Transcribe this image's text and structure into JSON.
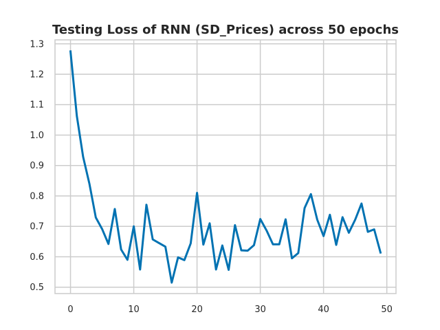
{
  "chart_data": {
    "type": "line",
    "title": "Testing Loss of RNN (SD_Prices) across 50 epochs",
    "xlabel": "",
    "ylabel": "",
    "xlim": [
      -2.45,
      51.45
    ],
    "ylim": [
      0.479,
      1.313
    ],
    "grid": true,
    "legend": "none",
    "x_ticks": [
      0,
      10,
      20,
      30,
      40,
      50
    ],
    "y_ticks": [
      0.5,
      0.6,
      0.7,
      0.8,
      0.9,
      1.0,
      1.1,
      1.2,
      1.3
    ],
    "x_tick_labels": [
      "0",
      "10",
      "20",
      "30",
      "40",
      "50"
    ],
    "y_tick_labels": [
      "0.5",
      "0.6",
      "0.7",
      "0.8",
      "0.9",
      "1.0",
      "1.1",
      "1.2",
      "1.3"
    ],
    "series": [
      {
        "color": "#0072b2",
        "x": [
          0,
          1,
          2,
          3,
          4,
          5,
          6,
          7,
          8,
          9,
          10,
          11,
          12,
          13,
          14,
          15,
          16,
          17,
          18,
          19,
          20,
          21,
          22,
          23,
          24,
          25,
          26,
          27,
          28,
          29,
          30,
          31,
          32,
          33,
          34,
          35,
          36,
          37,
          38,
          39,
          40,
          41,
          42,
          43,
          44,
          45,
          46,
          47,
          48,
          49
        ],
        "values": [
          1.275,
          1.063,
          0.928,
          0.839,
          0.729,
          0.691,
          0.642,
          0.757,
          0.624,
          0.59,
          0.7,
          0.558,
          0.771,
          0.657,
          0.645,
          0.633,
          0.515,
          0.598,
          0.589,
          0.644,
          0.81,
          0.64,
          0.71,
          0.558,
          0.637,
          0.557,
          0.704,
          0.621,
          0.62,
          0.638,
          0.724,
          0.686,
          0.641,
          0.641,
          0.723,
          0.595,
          0.612,
          0.76,
          0.806,
          0.722,
          0.668,
          0.738,
          0.639,
          0.73,
          0.679,
          0.722,
          0.775,
          0.682,
          0.69,
          0.614
        ]
      }
    ]
  },
  "style": {
    "background": "#ffffff",
    "grid_color": "#cccccc",
    "axis_color": "#cccccc",
    "text_color": "#262626"
  }
}
